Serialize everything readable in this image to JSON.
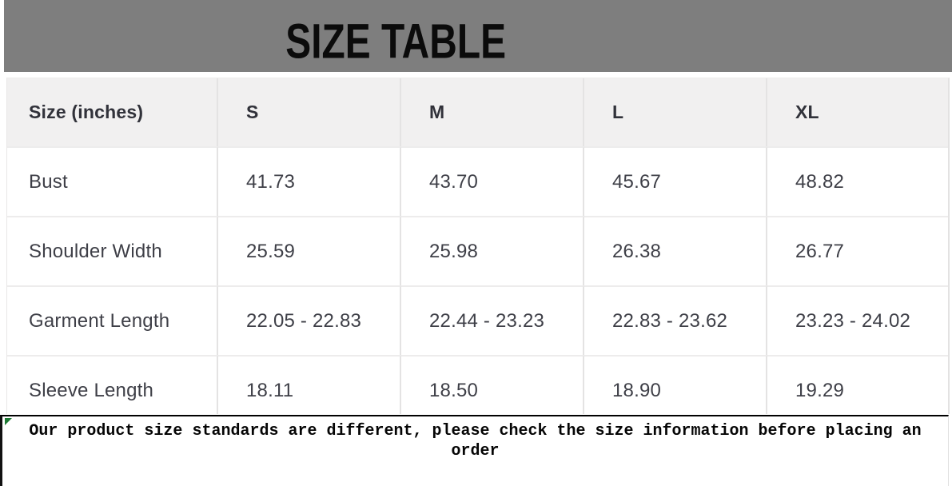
{
  "banner": {
    "title": "SIZE TABLE"
  },
  "table": {
    "columns": [
      "Size (inches)",
      "S",
      "M",
      "L",
      "XL"
    ],
    "rows": [
      {
        "label": "Bust",
        "values": [
          "41.73",
          "43.70",
          "45.67",
          "48.82"
        ]
      },
      {
        "label": "Shoulder Width",
        "values": [
          "25.59",
          "25.98",
          "26.38",
          "26.77"
        ]
      },
      {
        "label": "Garment Length",
        "values": [
          "22.05 - 22.83",
          "22.44 - 23.23",
          "22.83 - 23.62",
          "23.23 - 24.02"
        ]
      },
      {
        "label": "Sleeve Length",
        "values": [
          "18.11",
          "18.50",
          "18.90",
          "19.29"
        ]
      }
    ]
  },
  "footer": {
    "note": "Our product size standards are different, please check the size information before placing an order"
  },
  "colors": {
    "banner_bg": "#7e7e7e",
    "title_text": "#0b0b0b",
    "header_row_bg": "#f1f0f0",
    "table_text": "#3e3f47",
    "cell_border": "#e4e3e3",
    "footer_border": "#000000",
    "corner_marker_green": "#1e7a34"
  }
}
